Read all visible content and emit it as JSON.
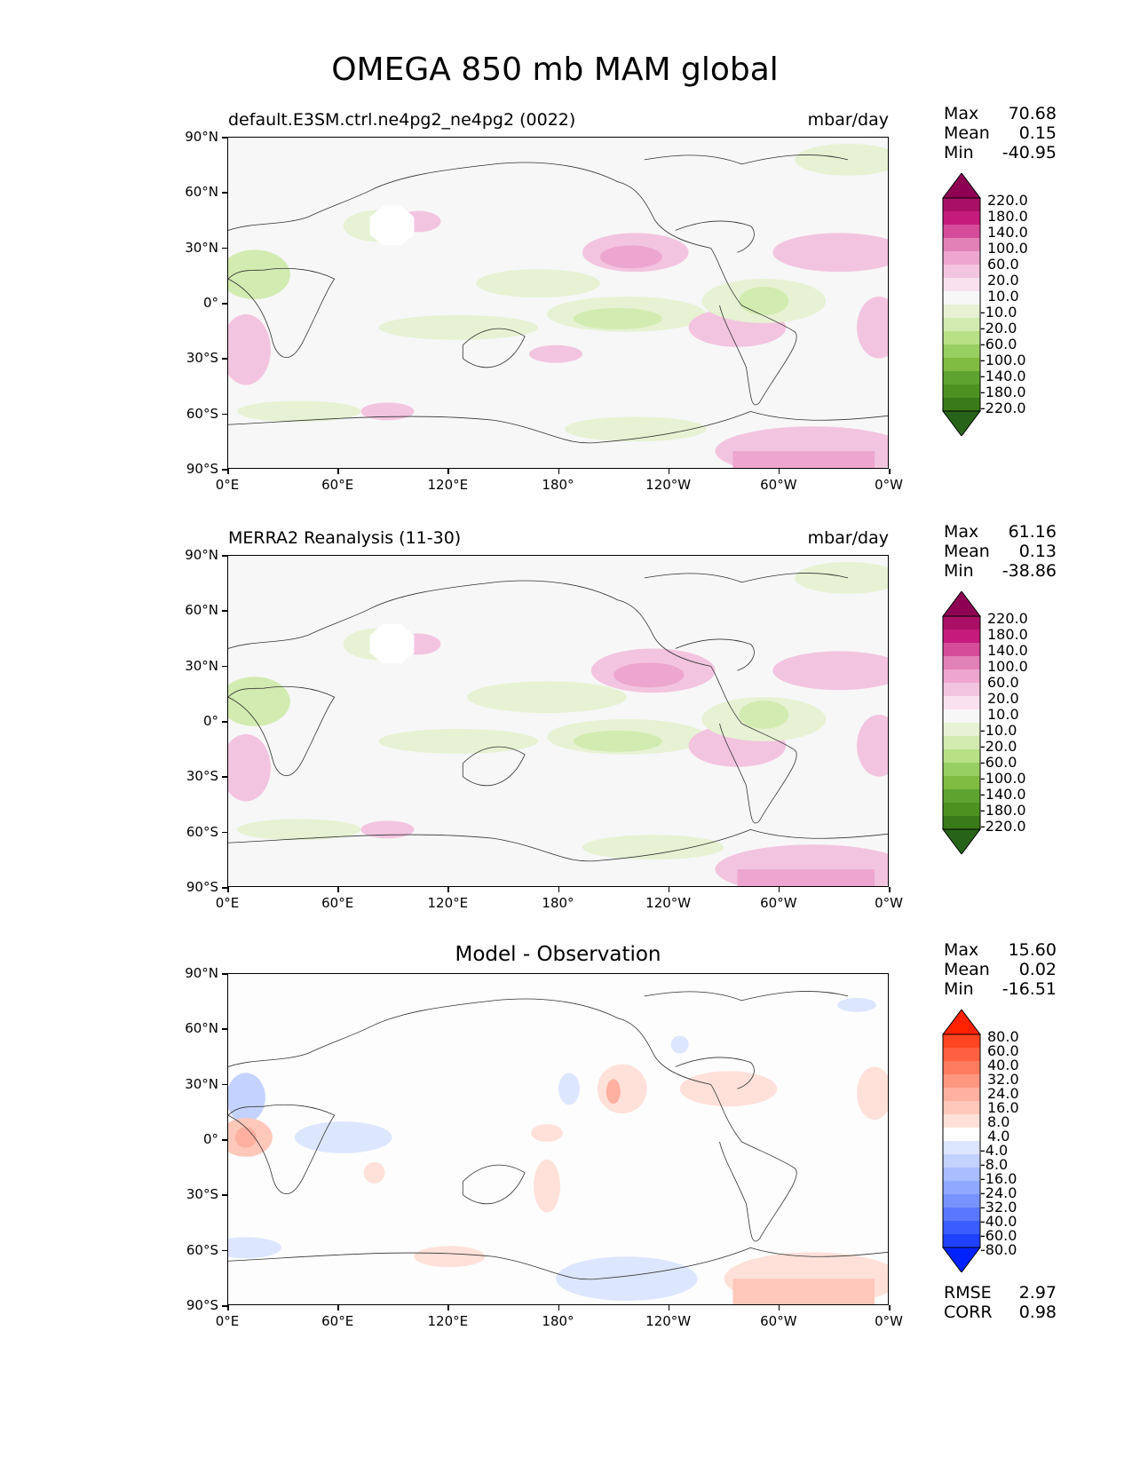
{
  "title": "OMEGA 850 mb MAM global",
  "y_ticks": [
    "90°N",
    "60°N",
    "30°N",
    "0°",
    "30°S",
    "60°S",
    "90°S"
  ],
  "x_ticks": [
    "0°E",
    "60°E",
    "120°E",
    "180°",
    "120°W",
    "60°W",
    "0°W"
  ],
  "panels": [
    {
      "title": "default.E3SM.ctrl.ne4pg2_ne4pg2 (0022)",
      "units": "mbar/day",
      "stats": [
        {
          "label": "Max",
          "value": "70.68"
        },
        {
          "label": "Mean",
          "value": "0.15"
        },
        {
          "label": "Min",
          "value": "-40.95"
        }
      ],
      "colorbar_labels": [
        "220.0",
        "180.0",
        "140.0",
        "100.0",
        "60.0",
        "20.0",
        "10.0",
        "-10.0",
        "-20.0",
        "-60.0",
        "-100.0",
        "-140.0",
        "-180.0",
        "-220.0"
      ]
    },
    {
      "title": "MERRA2 Reanalysis (11-30)",
      "units": "mbar/day",
      "stats": [
        {
          "label": "Max",
          "value": "61.16"
        },
        {
          "label": "Mean",
          "value": "0.13"
        },
        {
          "label": "Min",
          "value": "-38.86"
        }
      ],
      "colorbar_labels": [
        "220.0",
        "180.0",
        "140.0",
        "100.0",
        "60.0",
        "20.0",
        "10.0",
        "-10.0",
        "-20.0",
        "-60.0",
        "-100.0",
        "-140.0",
        "-180.0",
        "-220.0"
      ]
    },
    {
      "title": "Model - Observation",
      "units": "",
      "stats": [
        {
          "label": "Max",
          "value": "15.60"
        },
        {
          "label": "Mean",
          "value": "0.02"
        },
        {
          "label": "Min",
          "value": "-16.51"
        }
      ],
      "colorbar_labels": [
        "80.0",
        "60.0",
        "40.0",
        "32.0",
        "24.0",
        "16.0",
        "8.0",
        "4.0",
        "-4.0",
        "-8.0",
        "-16.0",
        "-24.0",
        "-32.0",
        "-40.0",
        "-60.0",
        "-80.0"
      ],
      "metrics": [
        {
          "label": "RMSE",
          "value": "2.97"
        },
        {
          "label": "CORR",
          "value": "0.98"
        }
      ]
    }
  ],
  "colors": {
    "omega_scale": [
      "#8e0152",
      "#a91065",
      "#c51b7d",
      "#d64c9b",
      "#e280b8",
      "#eda6cf",
      "#f3c4e0",
      "#f9e1ef",
      "#f7f7f7",
      "#e6f2d3",
      "#d2ebb0",
      "#b8e186",
      "#98cf63",
      "#7fbc41",
      "#5ea330",
      "#4d9221",
      "#3a7a18",
      "#276419"
    ],
    "diff_scale": [
      "#ff2200",
      "#ff4422",
      "#ff6040",
      "#ff7b60",
      "#ff9680",
      "#ffb0a0",
      "#ffc8bb",
      "#ffe1d9",
      "#ffffff",
      "#dde6ff",
      "#c4d2ff",
      "#aabdff",
      "#91a8ff",
      "#7893ff",
      "#5a78ff",
      "#3b5cff",
      "#1f40ff",
      "#0022ff"
    ]
  }
}
